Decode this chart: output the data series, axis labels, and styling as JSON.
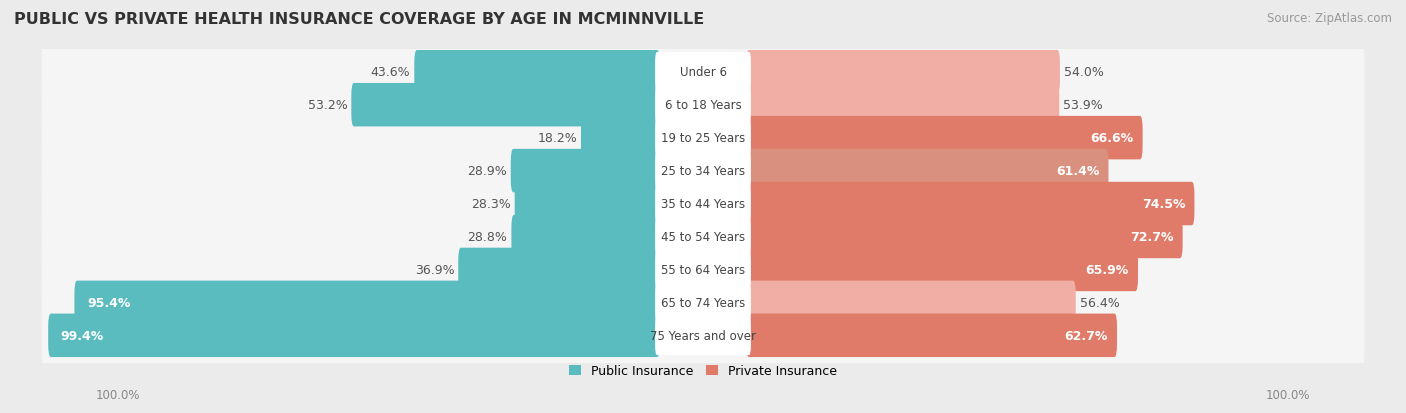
{
  "title": "Public vs Private Health Insurance Coverage by Age in Mcminnville",
  "title_display": "PUBLIC VS PRIVATE HEALTH INSURANCE COVERAGE BY AGE IN MCMINNVILLE",
  "source": "Source: ZipAtlas.com",
  "categories": [
    "Under 6",
    "6 to 18 Years",
    "19 to 25 Years",
    "25 to 34 Years",
    "35 to 44 Years",
    "45 to 54 Years",
    "55 to 64 Years",
    "65 to 74 Years",
    "75 Years and over"
  ],
  "public_values": [
    43.6,
    53.2,
    18.2,
    28.9,
    28.3,
    28.8,
    36.9,
    95.4,
    99.4
  ],
  "private_values": [
    54.0,
    53.9,
    66.6,
    61.4,
    74.5,
    72.7,
    65.9,
    56.4,
    62.7
  ],
  "public_color": "#5bbcbf",
  "private_color_strong": "#e07b6a",
  "private_color_light": "#f0aea4",
  "private_colors": [
    "#f0aea4",
    "#f0aea4",
    "#e07b6a",
    "#d9907e",
    "#e07b6a",
    "#e07b6a",
    "#e07b6a",
    "#f0aea4",
    "#e07b6a"
  ],
  "background_color": "#ebebeb",
  "row_bg_color": "#f5f5f5",
  "pill_color": "#ffffff",
  "max_value": 100.0,
  "title_fontsize": 11.5,
  "label_fontsize": 9,
  "category_fontsize": 8.5,
  "footer_fontsize": 8.5,
  "legend_fontsize": 9
}
